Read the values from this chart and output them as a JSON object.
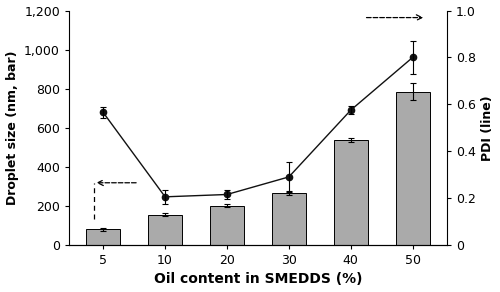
{
  "categories": [
    5,
    10,
    20,
    30,
    40,
    50
  ],
  "bar_values": [
    80,
    155,
    200,
    265,
    535,
    785
  ],
  "bar_errors": [
    8,
    8,
    8,
    12,
    10,
    45
  ],
  "pdi_values": [
    0.565,
    0.205,
    0.215,
    0.29,
    0.575,
    0.8
  ],
  "pdi_errors": [
    0.025,
    0.03,
    0.02,
    0.065,
    0.018,
    0.07
  ],
  "bar_color": "#aaaaaa",
  "line_color": "#111111",
  "bar_ylim": [
    0,
    1200
  ],
  "pdi_ylim": [
    0,
    1.0
  ],
  "bar_yticks": [
    0,
    200,
    400,
    600,
    800,
    1000,
    1200
  ],
  "pdi_yticks": [
    0,
    0.2,
    0.4,
    0.6,
    0.8,
    1.0
  ],
  "xlabel": "Oil content in SMEDDS (%)",
  "ylabel_left": "Droplet size (nm, bar)",
  "ylabel_right": "PDI (line)",
  "bar_width": 0.55
}
